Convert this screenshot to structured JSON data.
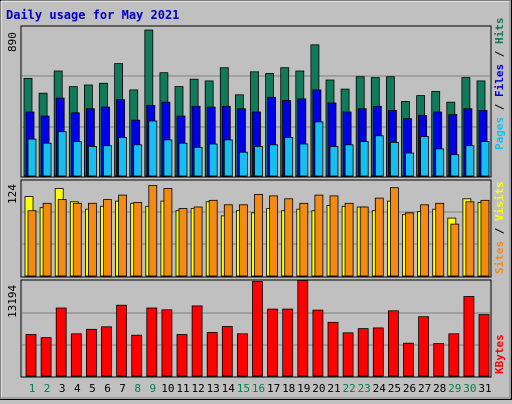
{
  "title": "Daily usage for May 2021",
  "colors": {
    "background": "#c0c0c0",
    "title": "#0000c0",
    "hits": "#117a59",
    "files": "#0000e6",
    "pages": "#15bff0",
    "visits": "#ffff00",
    "sites": "#f28a14",
    "kbytes": "#ff0000",
    "weekend_label": "#00804a",
    "weekday_label": "#000000"
  },
  "chart_data": [
    {
      "type": "bar",
      "panel": "hits-files-pages",
      "y_label_max": "890",
      "ylim": [
        0,
        890
      ],
      "legend": {
        "pages": "Pages",
        "files": "Files",
        "hits": "Hits",
        "sep": " / "
      },
      "categories": [
        "1",
        "2",
        "3",
        "4",
        "5",
        "6",
        "7",
        "8",
        "9",
        "10",
        "11",
        "12",
        "13",
        "14",
        "15",
        "16",
        "17",
        "18",
        "19",
        "20",
        "21",
        "22",
        "23",
        "24",
        "25",
        "26",
        "27",
        "28",
        "29",
        "30",
        "31"
      ],
      "series": [
        {
          "name": "Hits",
          "values": [
            595,
            505,
            640,
            545,
            555,
            565,
            685,
            525,
            890,
            630,
            545,
            590,
            580,
            660,
            495,
            635,
            625,
            660,
            640,
            800,
            585,
            530,
            605,
            600,
            605,
            455,
            490,
            515,
            450,
            600,
            580
          ]
        },
        {
          "name": "Files",
          "values": [
            390,
            365,
            475,
            385,
            410,
            420,
            465,
            340,
            430,
            450,
            365,
            425,
            420,
            425,
            410,
            390,
            480,
            460,
            470,
            525,
            445,
            390,
            410,
            425,
            400,
            350,
            370,
            390,
            375,
            410,
            400
          ]
        },
        {
          "name": "Pages",
          "values": [
            225,
            200,
            270,
            210,
            180,
            185,
            235,
            190,
            335,
            220,
            200,
            175,
            195,
            220,
            145,
            180,
            190,
            235,
            195,
            330,
            180,
            190,
            210,
            245,
            205,
            140,
            240,
            165,
            130,
            185,
            210
          ]
        }
      ]
    },
    {
      "type": "bar",
      "panel": "visits-sites",
      "y_label_max": "124",
      "ylim": [
        0,
        124
      ],
      "legend": {
        "sites": "Sites",
        "visits": "Visits",
        "sep": " / "
      },
      "categories": [
        "1",
        "2",
        "3",
        "4",
        "5",
        "6",
        "7",
        "8",
        "9",
        "10",
        "11",
        "12",
        "13",
        "14",
        "15",
        "16",
        "17",
        "18",
        "19",
        "20",
        "21",
        "22",
        "23",
        "24",
        "25",
        "26",
        "27",
        "28",
        "29",
        "30",
        "31"
      ],
      "series": [
        {
          "name": "Visits",
          "values": [
            107,
            92,
            118,
            100,
            90,
            94,
            101,
            98,
            94,
            101,
            88,
            91,
            100,
            81,
            88,
            85,
            91,
            88,
            90,
            88,
            95,
            94,
            93,
            88,
            101,
            83,
            87,
            90,
            78,
            104,
            99
          ]
        },
        {
          "name": "Sites",
          "values": [
            88,
            98,
            103,
            98,
            98,
            103,
            109,
            99,
            122,
            118,
            91,
            93,
            102,
            96,
            96,
            110,
            108,
            104,
            98,
            109,
            108,
            98,
            93,
            105,
            119,
            85,
            96,
            98,
            70,
            100,
            102
          ]
        }
      ]
    },
    {
      "type": "bar",
      "panel": "kbytes",
      "y_label_max": "13194",
      "ylim": [
        0,
        13194
      ],
      "legend": {
        "kbytes": "KBytes"
      },
      "categories": [
        "1",
        "2",
        "3",
        "4",
        "5",
        "6",
        "7",
        "8",
        "9",
        "10",
        "11",
        "12",
        "13",
        "14",
        "15",
        "16",
        "17",
        "18",
        "19",
        "20",
        "21",
        "22",
        "23",
        "24",
        "25",
        "26",
        "27",
        "28",
        "29",
        "30",
        "31"
      ],
      "weekend_days": [
        "1",
        "2",
        "8",
        "9",
        "15",
        "16",
        "22",
        "23",
        "29",
        "30"
      ],
      "series": [
        {
          "name": "KBytes",
          "values": [
            5950,
            5500,
            9750,
            6050,
            6700,
            7050,
            10150,
            5850,
            9750,
            9500,
            5950,
            10050,
            6250,
            7100,
            6050,
            13550,
            9600,
            9600,
            13700,
            9450,
            7700,
            6200,
            6800,
            6900,
            9350,
            4700,
            8500,
            4650,
            6050,
            11400,
            8800
          ]
        }
      ]
    }
  ]
}
